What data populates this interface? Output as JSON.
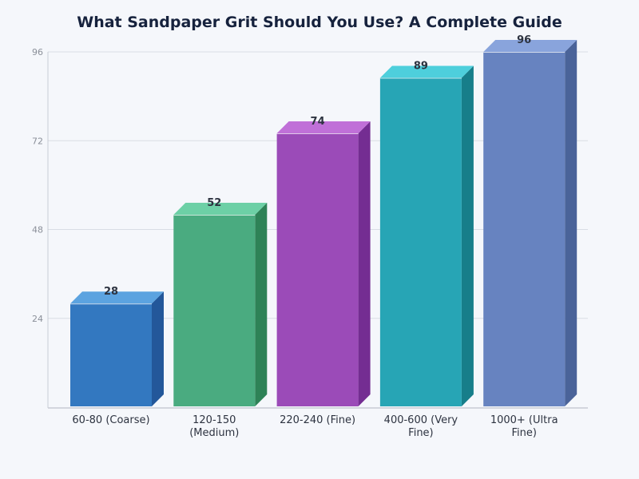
{
  "chart_data": {
    "type": "bar",
    "title": "What Sandpaper Grit Should You Use? A Complete Guide",
    "xlabel": "",
    "ylabel": "",
    "categories": [
      [
        "60-80 (Coarse)"
      ],
      [
        "120-150",
        "(Medium)"
      ],
      [
        "220-240 (Fine)"
      ],
      [
        "400-600 (Very",
        "Fine)"
      ],
      [
        "1000+ (Ultra",
        "Fine)"
      ]
    ],
    "values": [
      28,
      52,
      74,
      89,
      96
    ],
    "ylim": [
      0,
      96
    ],
    "yticks": [
      24,
      48,
      72,
      96
    ],
    "grid": true,
    "legend": "none",
    "style": "3d-bars",
    "colors": [
      {
        "front": "#3378c0",
        "side": "#23579a",
        "top": "#5ca3e0"
      },
      {
        "front": "#4aab80",
        "side": "#2e8257",
        "top": "#6dd0a6"
      },
      {
        "front": "#9b4bb8",
        "side": "#742d92",
        "top": "#c070d8"
      },
      {
        "front": "#27a5b5",
        "side": "#177e8a",
        "top": "#4ecfdc"
      },
      {
        "front": "#6783c0",
        "side": "#4a6399",
        "top": "#89a4dc"
      }
    ]
  }
}
